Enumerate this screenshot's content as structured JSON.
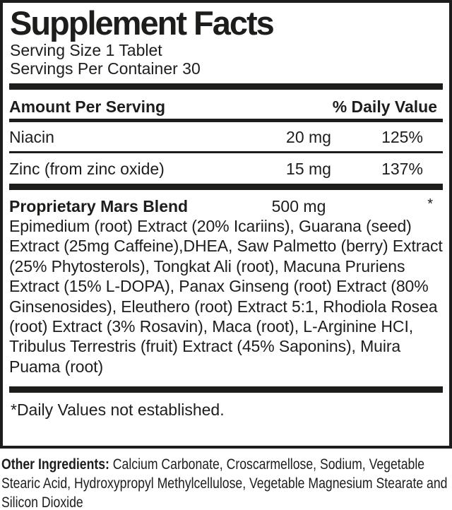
{
  "colors": {
    "ink": "#1d1d1b",
    "paper": "#ffffff"
  },
  "panel": {
    "title": "Supplement Facts",
    "serving_size": "Serving Size 1 Tablet",
    "servings_per_container": "Servings Per Container 30",
    "table": {
      "header": {
        "amount_per_serving": "Amount Per Serving",
        "daily_value": "% Daily Value"
      },
      "rows": [
        {
          "name": "Niacin",
          "amount": "20 mg",
          "daily_value": "125%"
        },
        {
          "name": "Zinc (from zinc oxide)",
          "amount": "15 mg",
          "daily_value": "137%"
        }
      ]
    },
    "blend": {
      "name": "Proprietary Mars Blend",
      "amount": "500 mg",
      "daily_value_marker": "*",
      "ingredients": "Epimedium (root) Extract (20% Icariins), Guarana (seed) Extract (25mg Caffeine),DHEA, Saw Palmetto (berry) Extract (25% Phytosterols), Tongkat Ali (root), Macuna Pruriens Extract (15% L-DOPA), Panax Ginseng (root) Extract (80% Ginsenosides), Eleuthero (root) Extract 5:1, Rhodiola Rosea (root) Extract (3% Rosavin), Maca (root), L-Arginine HCI, Tribulus Terrestris (fruit) Extract (45% Saponins), Muira Puama (root)"
    },
    "footnote": "*Daily Values not established."
  },
  "other_ingredients": {
    "label": "Other Ingredients:",
    "text": " Calcium Carbonate, Croscarmellose, Sodium, Vegetable Stearic Acid, Hydroxypropyl Methylcellulose, Vegetable Magnesium Stearate and Silicon Dioxide"
  }
}
